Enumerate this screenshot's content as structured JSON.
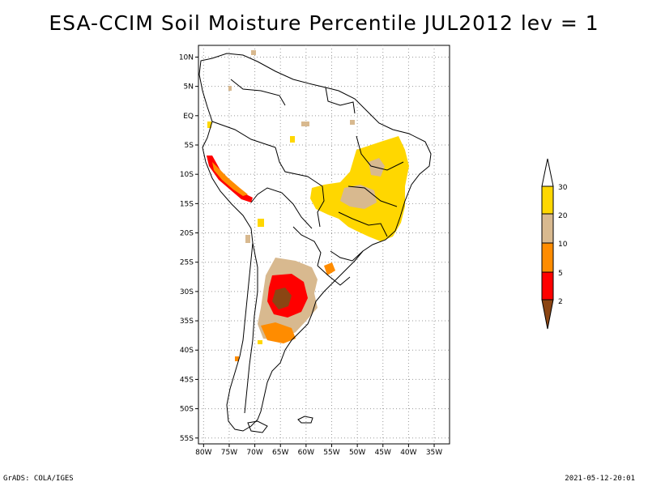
{
  "title": "ESA-CCIM Soil Moisture Percentile JUL2012 lev = 1",
  "footer_left": "GrADS: COLA/IGES",
  "footer_right": "2021-05-12-20:01",
  "map": {
    "lat_labels": [
      "10N",
      "5N",
      "EQ",
      "5S",
      "10S",
      "15S",
      "20S",
      "25S",
      "30S",
      "35S",
      "40S",
      "45S",
      "50S",
      "55S"
    ],
    "lon_labels": [
      "80W",
      "75W",
      "70W",
      "65W",
      "60W",
      "55W",
      "50W",
      "45W",
      "40W",
      "35W"
    ],
    "lat_values": [
      10,
      5,
      0,
      -5,
      -10,
      -15,
      -20,
      -25,
      -30,
      -35,
      -40,
      -45,
      -50,
      -55
    ],
    "lon_values": [
      -80,
      -75,
      -70,
      -65,
      -60,
      -55,
      -50,
      -45,
      -40,
      -35
    ]
  },
  "legend": {
    "labels": [
      "30",
      "20",
      "10",
      "5",
      "2"
    ],
    "colors": {
      "above30": "#ffffff",
      "20_30": "#ffd700",
      "10_20": "#d8b98f",
      "5_10": "#ff8c00",
      "2_5": "#ff0000",
      "below2": "#8b4513"
    }
  }
}
